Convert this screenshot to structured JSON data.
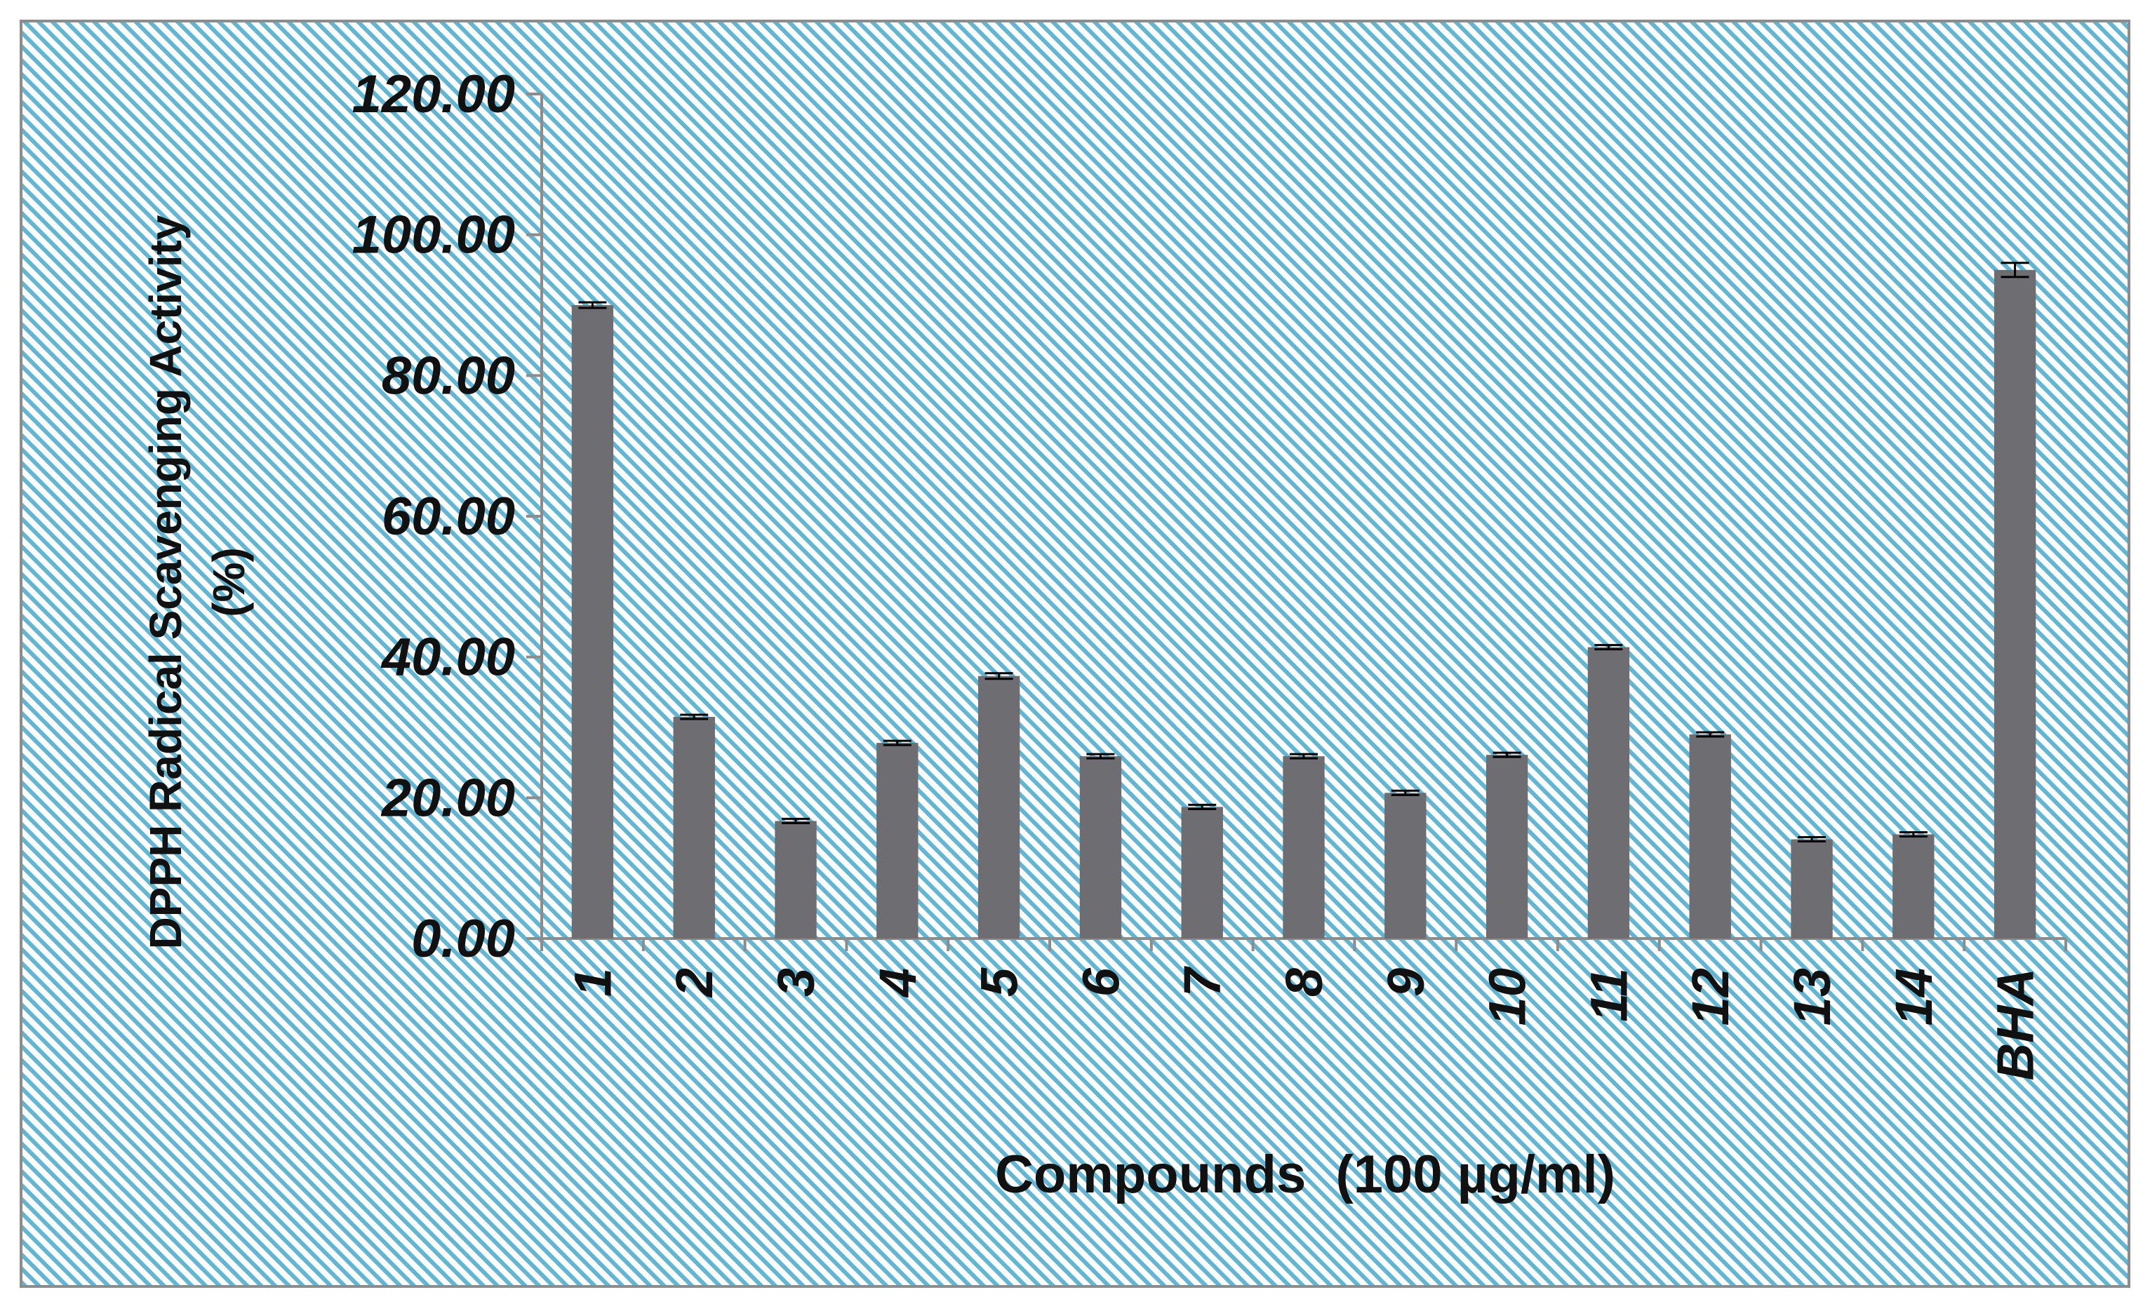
{
  "chart_data": {
    "type": "bar",
    "title": "",
    "xlabel": "Compounds  (100 µg/ml)",
    "ylabel_lines": [
      "DPPH Radical Scavenging Activity",
      "(%)"
    ],
    "categories": [
      "1",
      "2",
      "3",
      "4",
      "5",
      "6",
      "7",
      "8",
      "9",
      "10",
      "11",
      "12",
      "13",
      "14",
      "BHA"
    ],
    "values": [
      90.0,
      31.5,
      16.7,
      27.8,
      37.3,
      25.9,
      18.7,
      25.9,
      20.7,
      26.1,
      41.4,
      29.0,
      14.1,
      14.8,
      95.0
    ],
    "errors": [
      0.4,
      0.3,
      0.3,
      0.3,
      0.4,
      0.3,
      0.3,
      0.3,
      0.3,
      0.3,
      0.3,
      0.3,
      0.3,
      0.3,
      1.0
    ],
    "ylim": [
      0,
      120
    ],
    "yticks": [
      "0.00",
      "20.00",
      "40.00",
      "60.00",
      "80.00",
      "100.00",
      "120.00"
    ],
    "grid": false,
    "legend": "none",
    "colors": {
      "bar": "#6e6d72",
      "background_stripe": "#62b6d4",
      "background": "#ffffff",
      "frame": "#8c8c8c",
      "axis": "#8c8c8c",
      "text": "#111111"
    }
  }
}
